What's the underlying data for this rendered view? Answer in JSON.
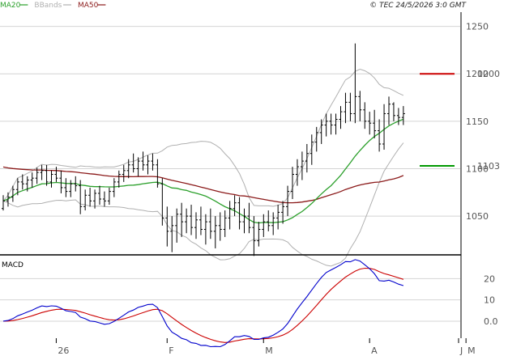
{
  "header": {
    "legend": [
      {
        "label": "MA20",
        "color": "#2ca02c"
      },
      {
        "label": "BBands",
        "color": "#b0b0b0"
      },
      {
        "label": "MA50",
        "color": "#8b1a1a"
      }
    ],
    "copyright": "© TEC 24/5/2026 3:0 GMT"
  },
  "macd_label": "MACD",
  "chart_data": [
    {
      "type": "candlestick",
      "title": "",
      "x_labels": [
        "26",
        "F",
        "M",
        "A",
        "M",
        "J"
      ],
      "y_ticks": [
        "1250",
        "1200",
        "1150",
        "1100",
        "1050"
      ],
      "ylim": [
        1010,
        1265
      ],
      "grid": true,
      "legend_position": "top-left",
      "colors": {
        "price": "#000000",
        "ma20": "#2ca02c",
        "bbands": "#b0b0b0",
        "ma50": "#8b1a1a",
        "resistance": "#cc0000",
        "support": "#009900"
      },
      "levels": [
        {
          "label": "1200",
          "value": 1200,
          "color": "#cc0000"
        },
        {
          "label": "1103",
          "value": 1103,
          "color": "#009900"
        }
      ],
      "ohlc_daily": [
        [
          1058,
          1072,
          1056,
          1066
        ],
        [
          1066,
          1075,
          1060,
          1070
        ],
        [
          1070,
          1082,
          1065,
          1078
        ],
        [
          1078,
          1090,
          1072,
          1086
        ],
        [
          1086,
          1094,
          1078,
          1084
        ],
        [
          1084,
          1092,
          1076,
          1088
        ],
        [
          1088,
          1096,
          1080,
          1090
        ],
        [
          1090,
          1101,
          1084,
          1096
        ],
        [
          1096,
          1104,
          1088,
          1098
        ],
        [
          1098,
          1104,
          1082,
          1086
        ],
        [
          1086,
          1098,
          1080,
          1094
        ],
        [
          1094,
          1102,
          1086,
          1090
        ],
        [
          1090,
          1098,
          1074,
          1080
        ],
        [
          1080,
          1090,
          1070,
          1076
        ],
        [
          1076,
          1088,
          1070,
          1084
        ],
        [
          1084,
          1092,
          1076,
          1082
        ],
        [
          1082,
          1088,
          1052,
          1060
        ],
        [
          1060,
          1078,
          1056,
          1072
        ],
        [
          1072,
          1080,
          1060,
          1066
        ],
        [
          1066,
          1078,
          1058,
          1074
        ],
        [
          1074,
          1082,
          1062,
          1068
        ],
        [
          1068,
          1076,
          1060,
          1066
        ],
        [
          1066,
          1080,
          1062,
          1076
        ],
        [
          1076,
          1090,
          1070,
          1086
        ],
        [
          1086,
          1098,
          1080,
          1094
        ],
        [
          1094,
          1104,
          1086,
          1098
        ],
        [
          1098,
          1110,
          1090,
          1104
        ],
        [
          1104,
          1116,
          1096,
          1100
        ],
        [
          1100,
          1112,
          1092,
          1108
        ],
        [
          1108,
          1118,
          1098,
          1104
        ],
        [
          1104,
          1114,
          1094,
          1108
        ],
        [
          1108,
          1116,
          1098,
          1104
        ],
        [
          1104,
          1110,
          1080,
          1084
        ],
        [
          1084,
          1090,
          1040,
          1048
        ],
        [
          1048,
          1060,
          1018,
          1034
        ],
        [
          1034,
          1050,
          1012,
          1040
        ],
        [
          1040,
          1058,
          1022,
          1052
        ],
        [
          1052,
          1064,
          1028,
          1044
        ],
        [
          1044,
          1058,
          1032,
          1050
        ],
        [
          1050,
          1062,
          1030,
          1038
        ],
        [
          1038,
          1054,
          1026,
          1046
        ],
        [
          1046,
          1060,
          1030,
          1036
        ],
        [
          1036,
          1052,
          1020,
          1044
        ],
        [
          1044,
          1058,
          1026,
          1034
        ],
        [
          1034,
          1050,
          1016,
          1040
        ],
        [
          1040,
          1054,
          1024,
          1036
        ],
        [
          1036,
          1056,
          1028,
          1048
        ],
        [
          1048,
          1066,
          1036,
          1058
        ],
        [
          1058,
          1072,
          1050,
          1064
        ],
        [
          1064,
          1070,
          1036,
          1044
        ],
        [
          1044,
          1058,
          1032,
          1050
        ],
        [
          1050,
          1064,
          1032,
          1038
        ],
        [
          1038,
          1050,
          1008,
          1024
        ],
        [
          1024,
          1044,
          1018,
          1036
        ],
        [
          1036,
          1052,
          1028,
          1044
        ],
        [
          1044,
          1056,
          1034,
          1040
        ],
        [
          1040,
          1054,
          1030,
          1048
        ],
        [
          1048,
          1062,
          1036,
          1054
        ],
        [
          1054,
          1066,
          1042,
          1060
        ],
        [
          1060,
          1082,
          1050,
          1076
        ],
        [
          1076,
          1102,
          1068,
          1094
        ],
        [
          1094,
          1110,
          1082,
          1102
        ],
        [
          1102,
          1118,
          1088,
          1108
        ],
        [
          1108,
          1126,
          1096,
          1116
        ],
        [
          1116,
          1136,
          1104,
          1128
        ],
        [
          1128,
          1144,
          1118,
          1138
        ],
        [
          1138,
          1152,
          1126,
          1146
        ],
        [
          1146,
          1158,
          1134,
          1150
        ],
        [
          1150,
          1158,
          1136,
          1146
        ],
        [
          1146,
          1158,
          1136,
          1152
        ],
        [
          1152,
          1166,
          1142,
          1160
        ],
        [
          1160,
          1180,
          1148,
          1170
        ],
        [
          1170,
          1180,
          1150,
          1158
        ],
        [
          1158,
          1232,
          1148,
          1176
        ],
        [
          1176,
          1182,
          1150,
          1162
        ],
        [
          1162,
          1170,
          1142,
          1150
        ],
        [
          1150,
          1160,
          1136,
          1148
        ],
        [
          1148,
          1162,
          1132,
          1140
        ],
        [
          1140,
          1152,
          1118,
          1126
        ],
        [
          1126,
          1168,
          1120,
          1158
        ],
        [
          1158,
          1176,
          1146,
          1168
        ],
        [
          1168,
          1170,
          1150,
          1156
        ],
        [
          1156,
          1164,
          1146,
          1154
        ],
        [
          1154,
          1166,
          1146,
          1158
        ]
      ],
      "ohlc_first_day_of_month": {
        "26": 12,
        "F": 35,
        "M": 55,
        "A": 77,
        "M2": 97
      }
    },
    {
      "type": "line",
      "title": "MACD",
      "y_ticks": [
        "20",
        "10",
        "0.0"
      ],
      "ylim": [
        -8,
        30
      ],
      "series": [
        {
          "name": "",
          "color": "#0000cc",
          "role": "macd"
        },
        {
          "name": "",
          "color": "#cc0000",
          "role": "signal"
        }
      ]
    }
  ]
}
